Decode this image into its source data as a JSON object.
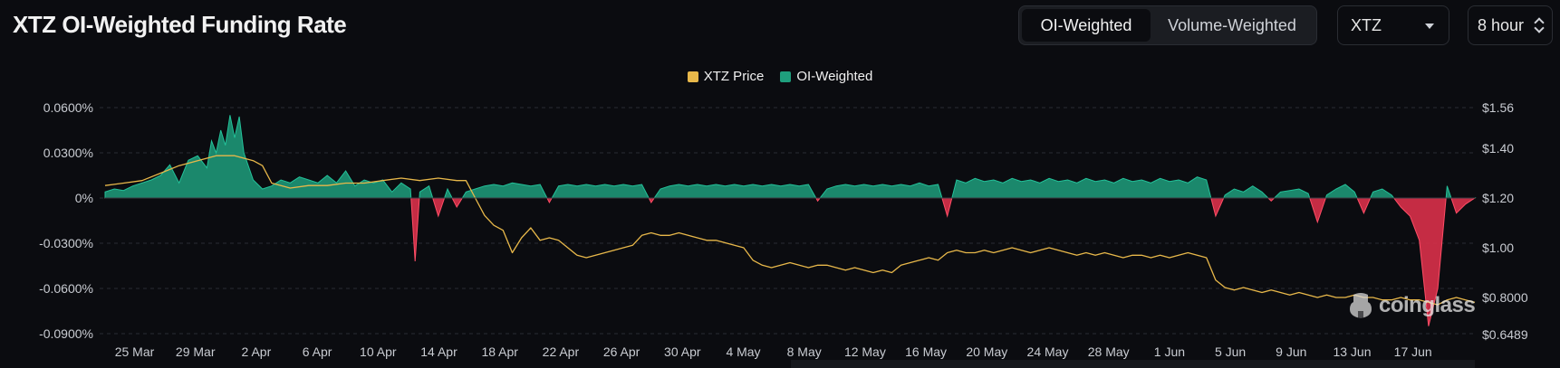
{
  "header": {
    "title": "XTZ OI-Weighted Funding Rate",
    "tabs": [
      {
        "label": "OI-Weighted",
        "active": true
      },
      {
        "label": "Volume-Weighted",
        "active": false
      }
    ],
    "coin_select": {
      "value": "XTZ"
    },
    "interval_select": {
      "value": "8 hour"
    }
  },
  "watermark": {
    "text": "coinglass"
  },
  "colors": {
    "background": "#0b0c10",
    "price": "#e8b84a",
    "positive": "#1f9f7d",
    "negative": "#d9304a",
    "grid": "#2a2d33"
  },
  "chart_data": {
    "type": "area",
    "legend": [
      "XTZ Price",
      "OI-Weighted"
    ],
    "legend_position": "top-center",
    "x_ticks": [
      "25 Mar",
      "29 Mar",
      "2 Apr",
      "6 Apr",
      "10 Apr",
      "14 Apr",
      "18 Apr",
      "22 Apr",
      "26 Apr",
      "30 Apr",
      "4 May",
      "8 May",
      "12 May",
      "16 May",
      "20 May",
      "24 May",
      "28 May",
      "1 Jun",
      "5 Jun",
      "9 Jun",
      "13 Jun",
      "17 Jun"
    ],
    "y_left_ticks": [
      "0.0600%",
      "0.0300%",
      "0%",
      "-0.0300%",
      "-0.0600%",
      "-0.0900%"
    ],
    "y_left_values": [
      0.06,
      0.03,
      0,
      -0.03,
      -0.06,
      -0.09
    ],
    "y_left_range": [
      -0.09,
      0.06
    ],
    "y_right_ticks": [
      "$1.56",
      "$1.40",
      "$1.20",
      "$1.00",
      "$0.8000",
      "$0.6489"
    ],
    "y_right_values": [
      1.56,
      1.4,
      1.2,
      1.0,
      0.8,
      0.6489
    ],
    "y_right_range": [
      0.6489,
      1.56
    ],
    "grid": "horizontal dashed",
    "start_date": "2024-03-22",
    "end_date": "2024-06-21",
    "series": [
      {
        "name": "OI-Weighted",
        "axis": "left",
        "unit": "%",
        "points": [
          [
            0,
            0.004
          ],
          [
            1,
            0.006
          ],
          [
            2,
            0.005
          ],
          [
            3,
            0.008
          ],
          [
            4,
            0.01
          ],
          [
            5,
            0.012
          ],
          [
            6,
            0.015
          ],
          [
            7,
            0.022
          ],
          [
            8,
            0.01
          ],
          [
            9,
            0.025
          ],
          [
            10,
            0.028
          ],
          [
            11,
            0.02
          ],
          [
            11.5,
            0.038
          ],
          [
            12,
            0.03
          ],
          [
            12.5,
            0.045
          ],
          [
            13,
            0.035
          ],
          [
            13.5,
            0.055
          ],
          [
            14,
            0.04
          ],
          [
            14.5,
            0.054
          ],
          [
            15,
            0.03
          ],
          [
            16,
            0.012
          ],
          [
            17,
            0.006
          ],
          [
            18,
            0.008
          ],
          [
            19,
            0.012
          ],
          [
            20,
            0.01
          ],
          [
            21,
            0.014
          ],
          [
            22,
            0.012
          ],
          [
            23,
            0.01
          ],
          [
            24,
            0.015
          ],
          [
            25,
            0.01
          ],
          [
            26,
            0.018
          ],
          [
            27,
            0.008
          ],
          [
            28,
            0.012
          ],
          [
            29,
            0.01
          ],
          [
            30,
            0.012
          ],
          [
            31,
            0.004
          ],
          [
            32,
            0.01
          ],
          [
            33,
            0.006
          ],
          [
            33.5,
            -0.042
          ],
          [
            34,
            0.004
          ],
          [
            35,
            0.008
          ],
          [
            36,
            -0.012
          ],
          [
            37,
            0.006
          ],
          [
            38,
            -0.006
          ],
          [
            39,
            0.004
          ],
          [
            40,
            0.006
          ],
          [
            41,
            0.008
          ],
          [
            42,
            0.009
          ],
          [
            43,
            0.008
          ],
          [
            44,
            0.01
          ],
          [
            45,
            0.009
          ],
          [
            46,
            0.008
          ],
          [
            47,
            0.009
          ],
          [
            48,
            -0.003
          ],
          [
            49,
            0.008
          ],
          [
            50,
            0.009
          ],
          [
            51,
            0.008
          ],
          [
            52,
            0.009
          ],
          [
            53,
            0.008
          ],
          [
            54,
            0.009
          ],
          [
            55,
            0.008
          ],
          [
            56,
            0.009
          ],
          [
            57,
            0.008
          ],
          [
            58,
            0.009
          ],
          [
            59,
            -0.003
          ],
          [
            60,
            0.006
          ],
          [
            61,
            0.008
          ],
          [
            62,
            0.009
          ],
          [
            63,
            0.008
          ],
          [
            64,
            0.009
          ],
          [
            65,
            0.008
          ],
          [
            66,
            0.009
          ],
          [
            67,
            0.008
          ],
          [
            68,
            0.009
          ],
          [
            69,
            0.008
          ],
          [
            70,
            0.009
          ],
          [
            71,
            0.008
          ],
          [
            72,
            0.009
          ],
          [
            73,
            0.008
          ],
          [
            74,
            0.009
          ],
          [
            75,
            0.008
          ],
          [
            76,
            0.009
          ],
          [
            77,
            -0.002
          ],
          [
            78,
            0.006
          ],
          [
            79,
            0.008
          ],
          [
            80,
            0.009
          ],
          [
            81,
            0.008
          ],
          [
            82,
            0.009
          ],
          [
            83,
            0.008
          ],
          [
            84,
            0.009
          ],
          [
            85,
            0.008
          ],
          [
            86,
            0.009
          ],
          [
            87,
            0.008
          ],
          [
            88,
            0.01
          ],
          [
            89,
            0.008
          ],
          [
            90,
            0.009
          ],
          [
            91,
            -0.012
          ],
          [
            92,
            0.012
          ],
          [
            93,
            0.01
          ],
          [
            94,
            0.013
          ],
          [
            95,
            0.011
          ],
          [
            96,
            0.012
          ],
          [
            97,
            0.01
          ],
          [
            98,
            0.013
          ],
          [
            99,
            0.011
          ],
          [
            100,
            0.012
          ],
          [
            101,
            0.01
          ],
          [
            102,
            0.013
          ],
          [
            103,
            0.011
          ],
          [
            104,
            0.012
          ],
          [
            105,
            0.01
          ],
          [
            106,
            0.013
          ],
          [
            107,
            0.011
          ],
          [
            108,
            0.012
          ],
          [
            109,
            0.01
          ],
          [
            110,
            0.013
          ],
          [
            111,
            0.011
          ],
          [
            112,
            0.012
          ],
          [
            113,
            0.01
          ],
          [
            114,
            0.013
          ],
          [
            115,
            0.011
          ],
          [
            116,
            0.012
          ],
          [
            117,
            0.01
          ],
          [
            118,
            0.014
          ],
          [
            119,
            0.012
          ],
          [
            120,
            -0.012
          ],
          [
            121,
            0.002
          ],
          [
            122,
            0.006
          ],
          [
            123,
            0.004
          ],
          [
            124,
            0.008
          ],
          [
            125,
            0.004
          ],
          [
            126,
            -0.002
          ],
          [
            127,
            0.004
          ],
          [
            128,
            0.005
          ],
          [
            129,
            0.006
          ],
          [
            130,
            0.003
          ],
          [
            131,
            -0.016
          ],
          [
            132,
            0.002
          ],
          [
            133,
            0.006
          ],
          [
            134,
            0.009
          ],
          [
            135,
            0.004
          ],
          [
            136,
            -0.01
          ],
          [
            137,
            0.004
          ],
          [
            138,
            0.006
          ],
          [
            139,
            0.002
          ],
          [
            140,
            -0.006
          ],
          [
            141,
            -0.012
          ],
          [
            142,
            -0.028
          ],
          [
            143,
            -0.085
          ],
          [
            144,
            -0.06
          ],
          [
            145,
            0.008
          ],
          [
            146,
            -0.01
          ],
          [
            147,
            -0.004
          ],
          [
            148,
            0
          ]
        ]
      },
      {
        "name": "XTZ Price",
        "axis": "right",
        "unit": "$",
        "points": [
          [
            0,
            1.25
          ],
          [
            2,
            1.26
          ],
          [
            4,
            1.27
          ],
          [
            6,
            1.3
          ],
          [
            8,
            1.33
          ],
          [
            10,
            1.35
          ],
          [
            12,
            1.37
          ],
          [
            14,
            1.37
          ],
          [
            16,
            1.35
          ],
          [
            17,
            1.33
          ],
          [
            18,
            1.26
          ],
          [
            20,
            1.24
          ],
          [
            22,
            1.25
          ],
          [
            24,
            1.25
          ],
          [
            26,
            1.26
          ],
          [
            28,
            1.26
          ],
          [
            30,
            1.27
          ],
          [
            32,
            1.28
          ],
          [
            34,
            1.27
          ],
          [
            36,
            1.28
          ],
          [
            38,
            1.27
          ],
          [
            39,
            1.27
          ],
          [
            40,
            1.2
          ],
          [
            41,
            1.13
          ],
          [
            42,
            1.09
          ],
          [
            43,
            1.07
          ],
          [
            44,
            0.98
          ],
          [
            45,
            1.04
          ],
          [
            46,
            1.08
          ],
          [
            47,
            1.03
          ],
          [
            48,
            1.04
          ],
          [
            49,
            1.03
          ],
          [
            50,
            1.0
          ],
          [
            51,
            0.97
          ],
          [
            52,
            0.96
          ],
          [
            53,
            0.97
          ],
          [
            54,
            0.98
          ],
          [
            55,
            0.99
          ],
          [
            56,
            1.0
          ],
          [
            57,
            1.01
          ],
          [
            58,
            1.05
          ],
          [
            59,
            1.06
          ],
          [
            60,
            1.05
          ],
          [
            61,
            1.05
          ],
          [
            62,
            1.06
          ],
          [
            63,
            1.05
          ],
          [
            64,
            1.04
          ],
          [
            65,
            1.03
          ],
          [
            66,
            1.03
          ],
          [
            67,
            1.02
          ],
          [
            68,
            1.01
          ],
          [
            69,
            1.0
          ],
          [
            70,
            0.95
          ],
          [
            71,
            0.93
          ],
          [
            72,
            0.92
          ],
          [
            73,
            0.93
          ],
          [
            74,
            0.94
          ],
          [
            75,
            0.93
          ],
          [
            76,
            0.92
          ],
          [
            77,
            0.93
          ],
          [
            78,
            0.93
          ],
          [
            79,
            0.92
          ],
          [
            80,
            0.91
          ],
          [
            81,
            0.92
          ],
          [
            82,
            0.91
          ],
          [
            83,
            0.9
          ],
          [
            84,
            0.91
          ],
          [
            85,
            0.9
          ],
          [
            86,
            0.93
          ],
          [
            87,
            0.94
          ],
          [
            88,
            0.95
          ],
          [
            89,
            0.96
          ],
          [
            90,
            0.95
          ],
          [
            91,
            0.98
          ],
          [
            92,
            0.99
          ],
          [
            93,
            0.98
          ],
          [
            94,
            0.98
          ],
          [
            95,
            0.99
          ],
          [
            96,
            0.98
          ],
          [
            97,
            0.99
          ],
          [
            98,
            1.0
          ],
          [
            99,
            0.99
          ],
          [
            100,
            0.98
          ],
          [
            101,
            0.99
          ],
          [
            102,
            1.0
          ],
          [
            103,
            0.99
          ],
          [
            104,
            0.98
          ],
          [
            105,
            0.97
          ],
          [
            106,
            0.98
          ],
          [
            107,
            0.97
          ],
          [
            108,
            0.98
          ],
          [
            109,
            0.97
          ],
          [
            110,
            0.96
          ],
          [
            111,
            0.97
          ],
          [
            112,
            0.97
          ],
          [
            113,
            0.96
          ],
          [
            114,
            0.97
          ],
          [
            115,
            0.96
          ],
          [
            116,
            0.97
          ],
          [
            117,
            0.98
          ],
          [
            118,
            0.97
          ],
          [
            119,
            0.96
          ],
          [
            120,
            0.87
          ],
          [
            121,
            0.84
          ],
          [
            122,
            0.83
          ],
          [
            123,
            0.84
          ],
          [
            124,
            0.83
          ],
          [
            125,
            0.82
          ],
          [
            126,
            0.83
          ],
          [
            127,
            0.82
          ],
          [
            128,
            0.81
          ],
          [
            129,
            0.82
          ],
          [
            130,
            0.81
          ],
          [
            131,
            0.8
          ],
          [
            132,
            0.81
          ],
          [
            133,
            0.8
          ],
          [
            134,
            0.8
          ],
          [
            135,
            0.81
          ],
          [
            136,
            0.8
          ],
          [
            137,
            0.8
          ],
          [
            138,
            0.79
          ],
          [
            139,
            0.79
          ],
          [
            140,
            0.8
          ],
          [
            141,
            0.79
          ],
          [
            142,
            0.79
          ],
          [
            143,
            0.78
          ],
          [
            144,
            0.77
          ],
          [
            145,
            0.79
          ],
          [
            146,
            0.8
          ],
          [
            147,
            0.79
          ],
          [
            148,
            0.78
          ]
        ]
      }
    ]
  }
}
